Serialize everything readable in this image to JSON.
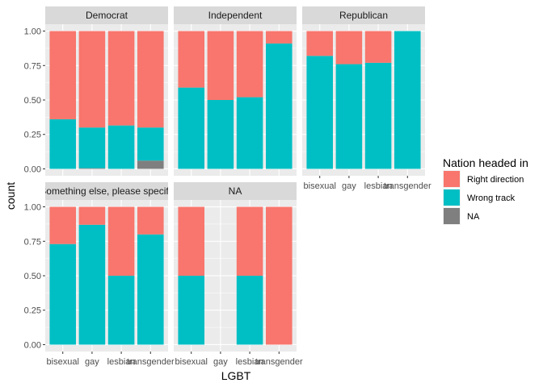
{
  "chart_data": {
    "type": "bar",
    "stacked": true,
    "position": "fill",
    "xlabel": "LGBT",
    "ylabel": "count",
    "categories": [
      "bisexual",
      "gay",
      "lesbian",
      "transgender"
    ],
    "yticks": [
      "0.00",
      "0.25",
      "0.50",
      "0.75",
      "1.00"
    ],
    "ylim": [
      0,
      1
    ],
    "legend": {
      "title": "Nation headed in",
      "placement": "right",
      "entries": [
        {
          "name": "Right direction",
          "color": "#F8766D"
        },
        {
          "name": "Wrong track",
          "color": "#00BFC4"
        },
        {
          "name": "NA",
          "color": "#7F7F7F"
        }
      ]
    },
    "panels": [
      {
        "title": "Democrat",
        "bars": [
          {
            "category": "bisexual",
            "na": 0,
            "wrong_track": 0.36,
            "right_direction": 0.64
          },
          {
            "category": "gay",
            "na": 0.005,
            "wrong_track": 0.295,
            "right_direction": 0.7
          },
          {
            "category": "lesbian",
            "na": 0,
            "wrong_track": 0.315,
            "right_direction": 0.685
          },
          {
            "category": "transgender",
            "na": 0.06,
            "wrong_track": 0.24,
            "right_direction": 0.7
          }
        ]
      },
      {
        "title": "Independent",
        "bars": [
          {
            "category": "bisexual",
            "na": 0,
            "wrong_track": 0.59,
            "right_direction": 0.41
          },
          {
            "category": "gay",
            "na": 0,
            "wrong_track": 0.5,
            "right_direction": 0.5
          },
          {
            "category": "lesbian",
            "na": 0,
            "wrong_track": 0.52,
            "right_direction": 0.48
          },
          {
            "category": "transgender",
            "na": 0,
            "wrong_track": 0.91,
            "right_direction": 0.09
          }
        ]
      },
      {
        "title": "Republican",
        "bars": [
          {
            "category": "bisexual",
            "na": 0,
            "wrong_track": 0.82,
            "right_direction": 0.18
          },
          {
            "category": "gay",
            "na": 0,
            "wrong_track": 0.76,
            "right_direction": 0.24
          },
          {
            "category": "lesbian",
            "na": 0,
            "wrong_track": 0.77,
            "right_direction": 0.23
          },
          {
            "category": "transgender",
            "na": 0,
            "wrong_track": 1.0,
            "right_direction": 0
          }
        ]
      },
      {
        "title": "Something else, please specify",
        "bars": [
          {
            "category": "bisexual",
            "na": 0,
            "wrong_track": 0.73,
            "right_direction": 0.27
          },
          {
            "category": "gay",
            "na": 0,
            "wrong_track": 0.87,
            "right_direction": 0.13
          },
          {
            "category": "lesbian",
            "na": 0,
            "wrong_track": 0.5,
            "right_direction": 0.5
          },
          {
            "category": "transgender",
            "na": 0,
            "wrong_track": 0.8,
            "right_direction": 0.2
          }
        ]
      },
      {
        "title": "NA",
        "bars": [
          {
            "category": "bisexual",
            "na": 0,
            "wrong_track": 0.5,
            "right_direction": 0.5
          },
          {
            "category": "gay",
            "na": 0,
            "wrong_track": 0,
            "right_direction": 0
          },
          {
            "category": "lesbian",
            "na": 0,
            "wrong_track": 0.5,
            "right_direction": 0.5
          },
          {
            "category": "transgender",
            "na": 0,
            "wrong_track": 0,
            "right_direction": 1.0
          }
        ]
      }
    ]
  }
}
